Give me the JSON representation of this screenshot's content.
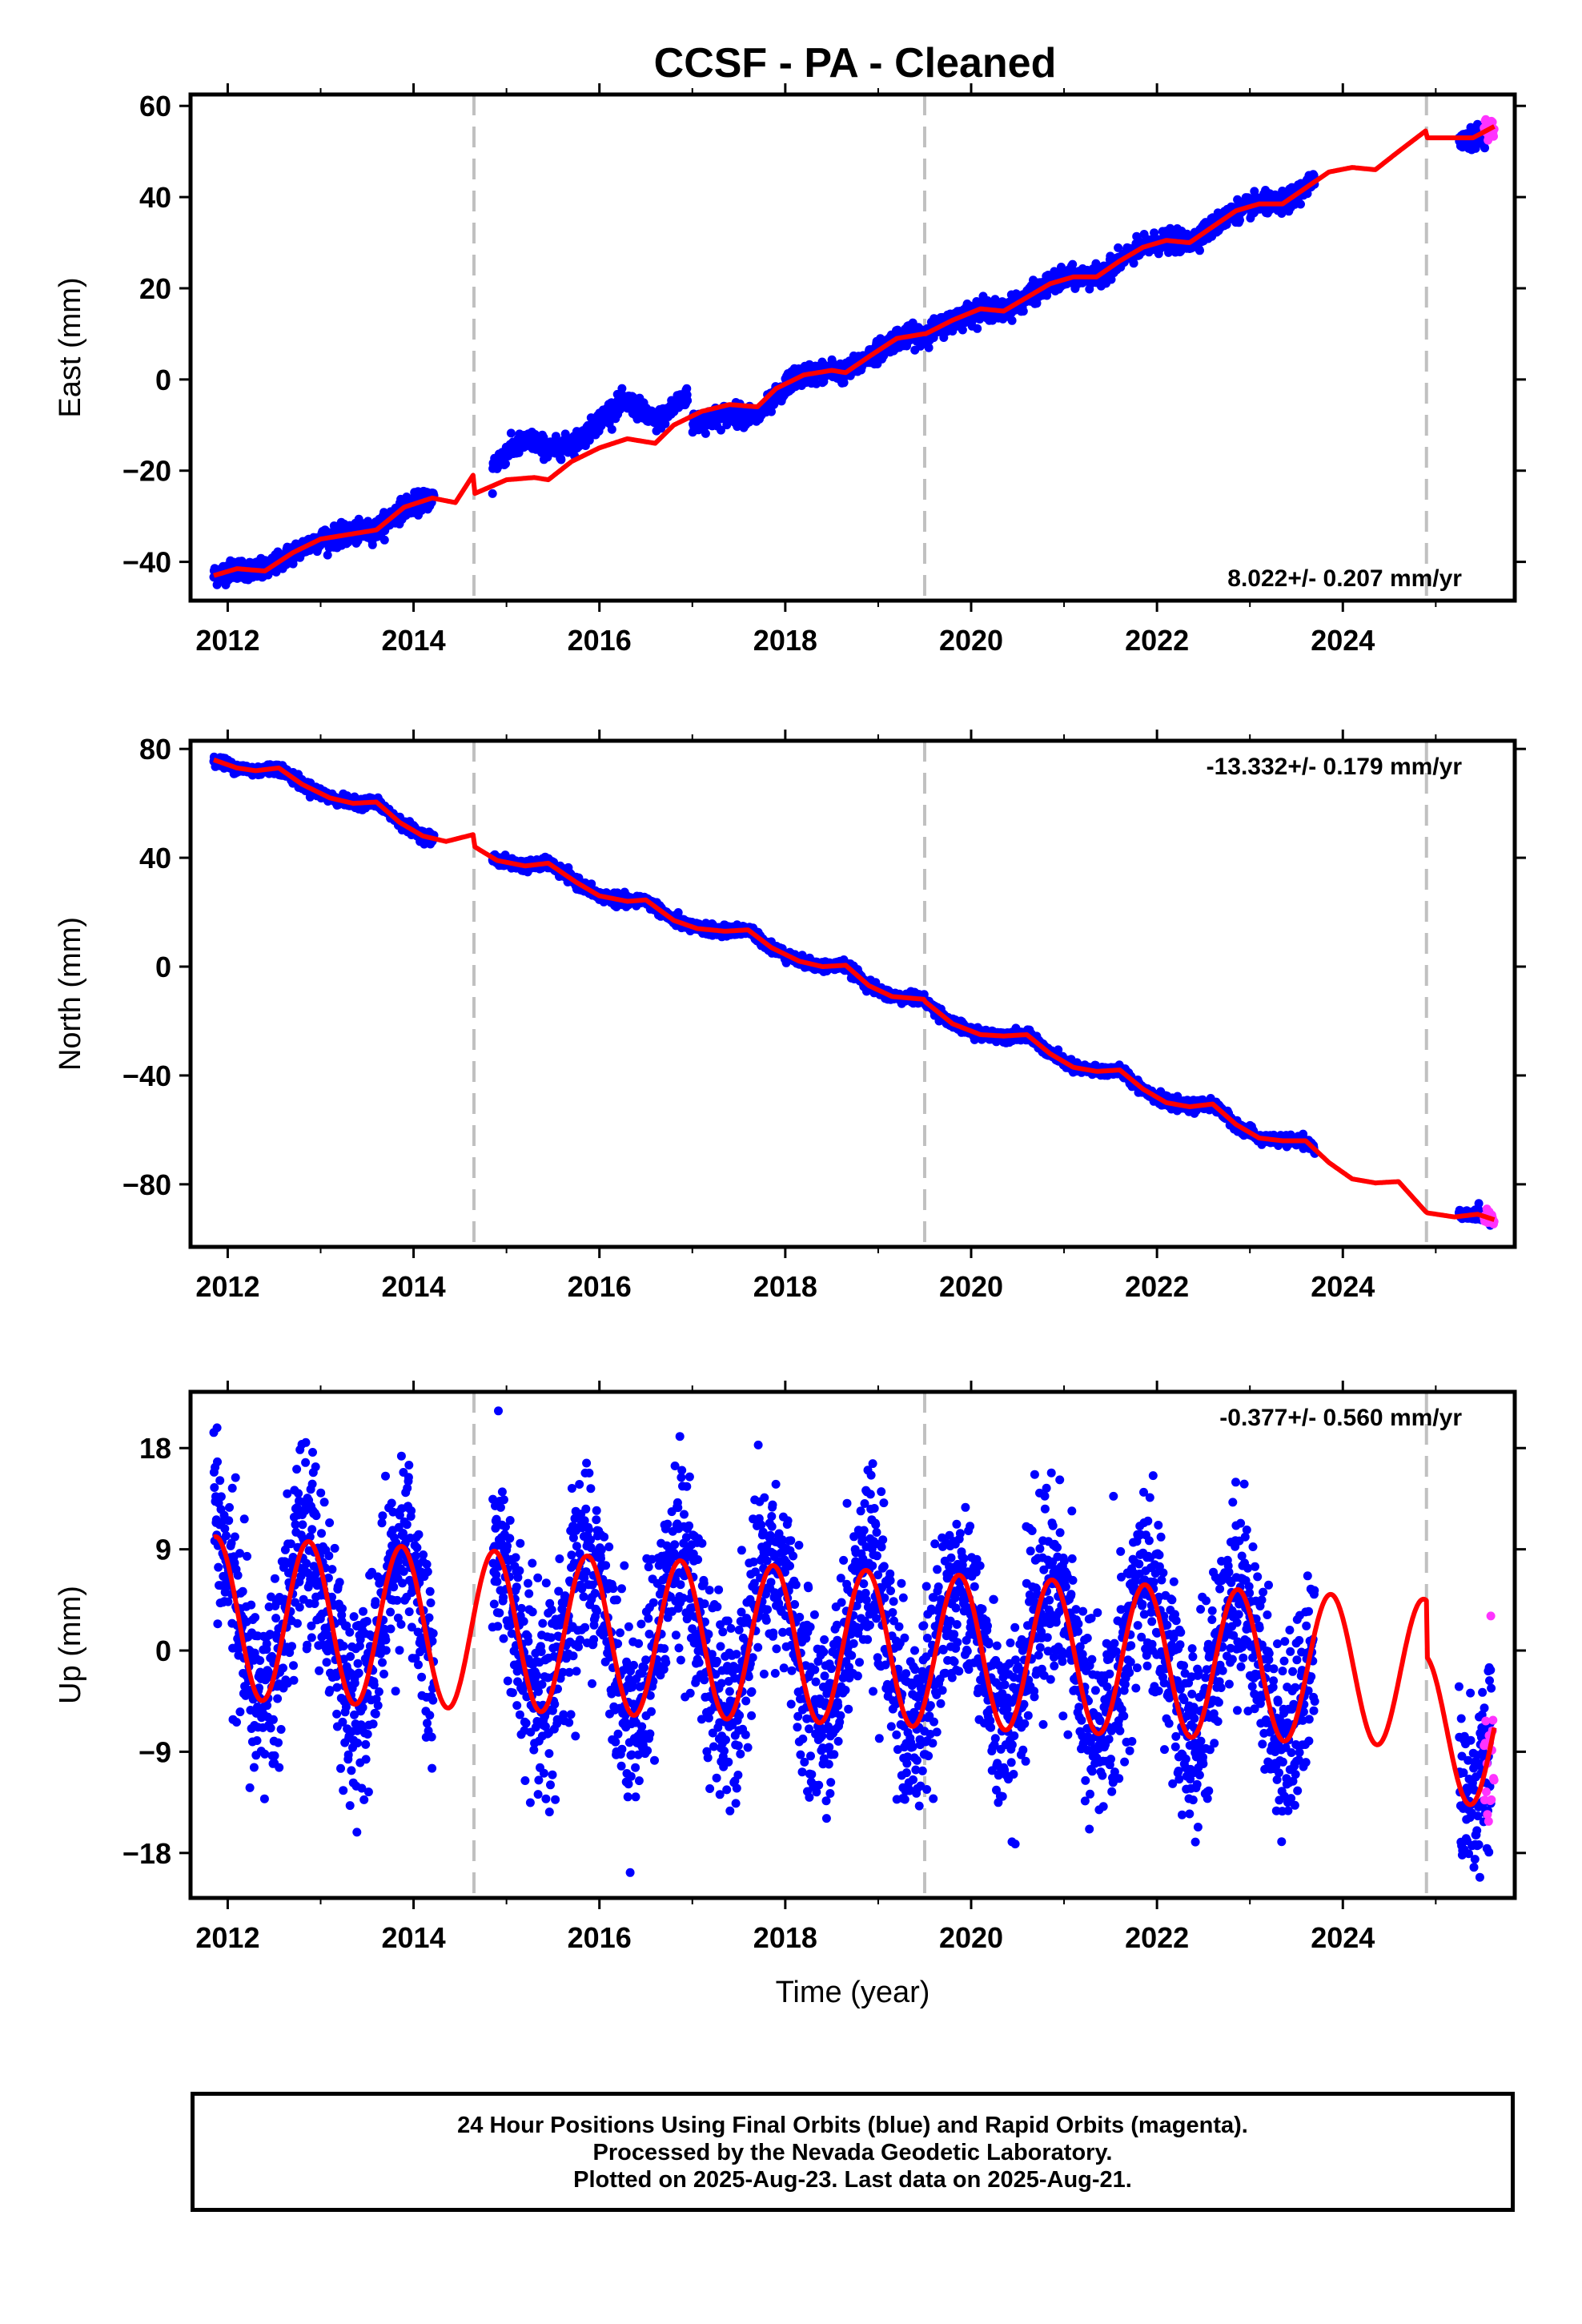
{
  "title": "CCSF  - PA - Cleaned",
  "colors": {
    "final_orbits": "#0000ff",
    "rapid_orbits": "#ff33ff",
    "model": "#ff0000",
    "breaks": "#c0c0c0"
  },
  "footer": [
    "24 Hour Positions Using Final Orbits (blue) and Rapid Orbits (magenta).",
    "Processed by the Nevada Geodetic Laboratory.",
    "Plotted on 2025-Aug-23. Last data on 2025-Aug-21."
  ],
  "chart_data": [
    {
      "type": "scatter",
      "component": "east",
      "title": "CCSF  - PA - Cleaned",
      "ylabel": "East (mm)",
      "xlabel": "",
      "rate_label": "8.022+/- 0.207 mm/yr",
      "xlim": [
        2011.6,
        2025.85
      ],
      "ylim": [
        -48.5,
        62.5
      ],
      "xticks": [
        2012,
        2014,
        2016,
        2018,
        2020,
        2022,
        2024
      ],
      "yticks": [
        -40,
        -20,
        0,
        20,
        40,
        60
      ],
      "ytick_labels": [
        "−40",
        "−20",
        "0",
        "20",
        "40",
        "60"
      ],
      "breaks": [
        2014.65,
        2019.5,
        2024.9
      ],
      "rate": 8.022,
      "data_ranges": [
        [
          2011.85,
          2014.22
        ],
        [
          2014.85,
          2016.95
        ],
        [
          2017.0,
          2023.7
        ],
        [
          2025.25,
          2025.6
        ]
      ],
      "rapid_range": [
        2025.52,
        2025.63
      ],
      "model_nodes": [
        [
          2011.85,
          -43
        ],
        [
          2012.1,
          -41.5
        ],
        [
          2012.4,
          -42
        ],
        [
          2012.7,
          -38
        ],
        [
          2013.0,
          -35
        ],
        [
          2013.3,
          -34
        ],
        [
          2013.6,
          -33
        ],
        [
          2013.9,
          -28
        ],
        [
          2014.2,
          -26
        ],
        [
          2014.45,
          -27
        ],
        [
          2014.64,
          -21
        ],
        [
          2014.66,
          -25
        ],
        [
          2015.0,
          -22
        ],
        [
          2015.3,
          -21.5
        ],
        [
          2015.45,
          -22
        ],
        [
          2015.7,
          -18
        ],
        [
          2016.0,
          -15
        ],
        [
          2016.3,
          -13
        ],
        [
          2016.6,
          -14
        ],
        [
          2016.8,
          -10
        ],
        [
          2017.1,
          -7
        ],
        [
          2017.4,
          -5.5
        ],
        [
          2017.7,
          -6
        ],
        [
          2017.9,
          -2
        ],
        [
          2018.2,
          1
        ],
        [
          2018.5,
          2
        ],
        [
          2018.65,
          1.5
        ],
        [
          2018.9,
          5
        ],
        [
          2019.2,
          9
        ],
        [
          2019.49,
          10
        ],
        [
          2019.51,
          10
        ],
        [
          2019.8,
          13
        ],
        [
          2020.1,
          15.5
        ],
        [
          2020.35,
          15
        ],
        [
          2020.6,
          18
        ],
        [
          2020.85,
          21
        ],
        [
          2021.1,
          22.5
        ],
        [
          2021.35,
          22.5
        ],
        [
          2021.6,
          26
        ],
        [
          2021.85,
          29
        ],
        [
          2022.1,
          30.5
        ],
        [
          2022.35,
          30
        ],
        [
          2022.6,
          33.5
        ],
        [
          2022.85,
          37
        ],
        [
          2023.1,
          38.5
        ],
        [
          2023.35,
          38.5
        ],
        [
          2023.6,
          42
        ],
        [
          2023.85,
          45.5
        ],
        [
          2024.1,
          46.5
        ],
        [
          2024.35,
          46
        ],
        [
          2024.6,
          50
        ],
        [
          2024.89,
          54.5
        ],
        [
          2024.91,
          53
        ],
        [
          2025.2,
          53
        ],
        [
          2025.4,
          53
        ],
        [
          2025.63,
          55.5
        ]
      ],
      "season_amp": 0,
      "scatter_sd": 1.8
    },
    {
      "type": "scatter",
      "component": "north",
      "title": "",
      "ylabel": "North (mm)",
      "xlabel": "",
      "rate_label": "-13.332+/- 0.179 mm/yr",
      "xlim": [
        2011.6,
        2025.85
      ],
      "ylim": [
        -103,
        83
      ],
      "xticks": [
        2012,
        2014,
        2016,
        2018,
        2020,
        2022,
        2024
      ],
      "yticks": [
        -80,
        -40,
        0,
        40,
        80
      ],
      "ytick_labels": [
        "−80",
        "−40",
        "0",
        "40",
        "80"
      ],
      "breaks": [
        2014.65,
        2019.5,
        2024.9
      ],
      "rate": -13.332,
      "data_ranges": [
        [
          2011.85,
          2014.22
        ],
        [
          2014.85,
          2023.7
        ],
        [
          2025.25,
          2025.6
        ]
      ],
      "rapid_range": [
        2025.52,
        2025.63
      ],
      "model_nodes": [
        [
          2011.85,
          76
        ],
        [
          2012.1,
          73
        ],
        [
          2012.3,
          72
        ],
        [
          2012.55,
          73
        ],
        [
          2012.8,
          67
        ],
        [
          2013.1,
          62
        ],
        [
          2013.35,
          60
        ],
        [
          2013.6,
          60.5
        ],
        [
          2013.85,
          53
        ],
        [
          2014.1,
          48
        ],
        [
          2014.35,
          46
        ],
        [
          2014.64,
          48.5
        ],
        [
          2014.66,
          44
        ],
        [
          2014.9,
          39
        ],
        [
          2015.2,
          37
        ],
        [
          2015.45,
          38
        ],
        [
          2015.75,
          31
        ],
        [
          2016.0,
          26
        ],
        [
          2016.3,
          24
        ],
        [
          2016.5,
          24.5
        ],
        [
          2016.8,
          17
        ],
        [
          2017.05,
          14
        ],
        [
          2017.35,
          13
        ],
        [
          2017.6,
          13.5
        ],
        [
          2017.85,
          7
        ],
        [
          2018.15,
          2
        ],
        [
          2018.4,
          0
        ],
        [
          2018.65,
          0.5
        ],
        [
          2018.9,
          -7
        ],
        [
          2019.15,
          -11
        ],
        [
          2019.49,
          -12
        ],
        [
          2019.51,
          -13
        ],
        [
          2019.8,
          -21
        ],
        [
          2020.1,
          -25
        ],
        [
          2020.35,
          -25.5
        ],
        [
          2020.6,
          -25
        ],
        [
          2020.85,
          -32
        ],
        [
          2021.1,
          -37
        ],
        [
          2021.35,
          -38.5
        ],
        [
          2021.6,
          -38
        ],
        [
          2021.85,
          -45
        ],
        [
          2022.1,
          -50
        ],
        [
          2022.35,
          -51.5
        ],
        [
          2022.6,
          -50.5
        ],
        [
          2022.85,
          -58
        ],
        [
          2023.1,
          -63
        ],
        [
          2023.35,
          -64
        ],
        [
          2023.6,
          -64
        ],
        [
          2023.85,
          -72
        ],
        [
          2024.1,
          -78
        ],
        [
          2024.35,
          -79.5
        ],
        [
          2024.6,
          -79
        ],
        [
          2024.89,
          -90
        ],
        [
          2024.91,
          -90.5
        ],
        [
          2025.2,
          -92
        ],
        [
          2025.45,
          -91
        ],
        [
          2025.63,
          -93
        ]
      ],
      "season_amp": 0,
      "scatter_sd": 1.6
    },
    {
      "type": "scatter",
      "component": "up",
      "title": "",
      "ylabel": "Up (mm)",
      "xlabel": "Time (year)",
      "rate_label": "-0.377+/- 0.560 mm/yr",
      "xlim": [
        2011.6,
        2025.85
      ],
      "ylim": [
        -22,
        23
      ],
      "xticks": [
        2012,
        2014,
        2016,
        2018,
        2020,
        2022,
        2024
      ],
      "yticks": [
        -18,
        -9,
        0,
        9,
        18
      ],
      "ytick_labels": [
        "−18",
        "−9",
        "0",
        "9",
        "18"
      ],
      "breaks": [
        2014.65,
        2019.5,
        2024.9
      ],
      "rate": -0.377,
      "data_ranges": [
        [
          2011.85,
          2014.22
        ],
        [
          2014.85,
          2023.7
        ],
        [
          2025.25,
          2025.6
        ]
      ],
      "rapid_range": [
        2025.52,
        2025.63
      ],
      "model_nodes": [],
      "season_amp": 7.2,
      "scatter_sd": 4.2
    }
  ]
}
